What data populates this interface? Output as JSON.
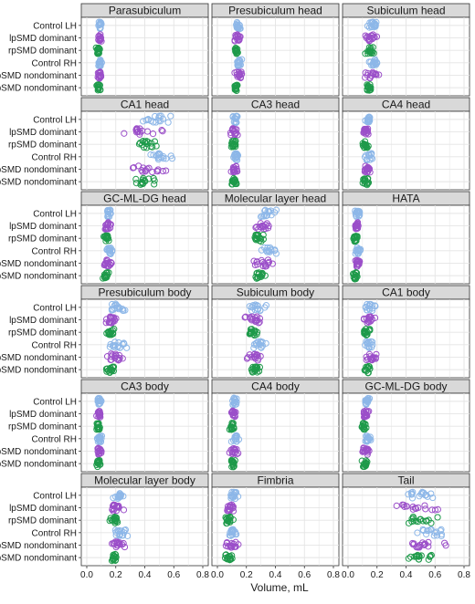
{
  "chart_data": {
    "type": "scatter",
    "layout": "facet-grid",
    "xlabel": "Volume, mL",
    "xlim": [
      0.0,
      0.8
    ],
    "x_ticks": [
      "0.0",
      "0.2",
      "0.4",
      "0.6",
      "0.8"
    ],
    "groups": [
      "Control LH",
      "lpSMD dominant",
      "rpSMD dominant",
      "Control RH",
      "lpSMD nondominant",
      "rpSMD nondominant"
    ],
    "group_colors": [
      "#8db7e8",
      "#9b4fc9",
      "#1e9a4a",
      "#8db7e8",
      "#9b4fc9",
      "#1e9a4a"
    ],
    "panel_bg": "#ffffff",
    "strip_bg": "#d9d9d9",
    "grid_color": "#e4e4e4",
    "marker": "open-circle",
    "panels": [
      {
        "title": "Parasubiculum",
        "ranges": [
          [
            0.07,
            0.11
          ],
          [
            0.07,
            0.11
          ],
          [
            0.06,
            0.1
          ],
          [
            0.07,
            0.11
          ],
          [
            0.07,
            0.11
          ],
          [
            0.06,
            0.1
          ]
        ]
      },
      {
        "title": "Presubiculum head",
        "ranges": [
          [
            0.12,
            0.17
          ],
          [
            0.11,
            0.17
          ],
          [
            0.11,
            0.15
          ],
          [
            0.12,
            0.17
          ],
          [
            0.11,
            0.18
          ],
          [
            0.11,
            0.15
          ]
        ]
      },
      {
        "title": "Subiculum head",
        "ranges": [
          [
            0.13,
            0.22
          ],
          [
            0.11,
            0.21
          ],
          [
            0.11,
            0.19
          ],
          [
            0.12,
            0.24
          ],
          [
            0.1,
            0.22
          ],
          [
            0.12,
            0.17
          ]
        ]
      },
      {
        "title": "CA1 head",
        "ranges": [
          [
            0.32,
            0.65
          ],
          [
            0.23,
            0.58
          ],
          [
            0.31,
            0.5
          ],
          [
            0.33,
            0.65
          ],
          [
            0.22,
            0.61
          ],
          [
            0.28,
            0.53
          ]
        ]
      },
      {
        "title": "CA3 head",
        "ranges": [
          [
            0.1,
            0.15
          ],
          [
            0.08,
            0.15
          ],
          [
            0.08,
            0.14
          ],
          [
            0.1,
            0.16
          ],
          [
            0.08,
            0.15
          ],
          [
            0.09,
            0.14
          ]
        ]
      },
      {
        "title": "CA4 head",
        "ranges": [
          [
            0.11,
            0.17
          ],
          [
            0.09,
            0.16
          ],
          [
            0.09,
            0.15
          ],
          [
            0.11,
            0.18
          ],
          [
            0.09,
            0.17
          ],
          [
            0.09,
            0.15
          ]
        ]
      },
      {
        "title": "GC-ML-DG head",
        "ranges": [
          [
            0.12,
            0.18
          ],
          [
            0.1,
            0.18
          ],
          [
            0.1,
            0.16
          ],
          [
            0.12,
            0.19
          ],
          [
            0.1,
            0.18
          ],
          [
            0.1,
            0.16
          ]
        ]
      },
      {
        "title": "Molecular layer head",
        "ranges": [
          [
            0.25,
            0.42
          ],
          [
            0.2,
            0.4
          ],
          [
            0.23,
            0.35
          ],
          [
            0.27,
            0.43
          ],
          [
            0.2,
            0.42
          ],
          [
            0.24,
            0.35
          ]
        ]
      },
      {
        "title": "HATA",
        "ranges": [
          [
            0.04,
            0.09
          ],
          [
            0.04,
            0.09
          ],
          [
            0.03,
            0.07
          ],
          [
            0.04,
            0.1
          ],
          [
            0.04,
            0.09
          ],
          [
            0.03,
            0.07
          ]
        ]
      },
      {
        "title": "Presubiculum body",
        "ranges": [
          [
            0.12,
            0.3
          ],
          [
            0.11,
            0.23
          ],
          [
            0.12,
            0.21
          ],
          [
            0.12,
            0.32
          ],
          [
            0.1,
            0.3
          ],
          [
            0.12,
            0.22
          ]
        ]
      },
      {
        "title": "Subiculum body",
        "ranges": [
          [
            0.21,
            0.35
          ],
          [
            0.17,
            0.32
          ],
          [
            0.2,
            0.29
          ],
          [
            0.21,
            0.36
          ],
          [
            0.18,
            0.34
          ],
          [
            0.21,
            0.3
          ]
        ]
      },
      {
        "title": "CA1 body",
        "ranges": [
          [
            0.09,
            0.22
          ],
          [
            0.09,
            0.21
          ],
          [
            0.09,
            0.17
          ],
          [
            0.09,
            0.2
          ],
          [
            0.09,
            0.23
          ],
          [
            0.09,
            0.17
          ]
        ]
      },
      {
        "title": "CA3 body",
        "ranges": [
          [
            0.06,
            0.11
          ],
          [
            0.06,
            0.11
          ],
          [
            0.06,
            0.1
          ],
          [
            0.06,
            0.12
          ],
          [
            0.06,
            0.11
          ],
          [
            0.06,
            0.1
          ]
        ]
      },
      {
        "title": "CA4 body",
        "ranges": [
          [
            0.09,
            0.15
          ],
          [
            0.08,
            0.14
          ],
          [
            0.08,
            0.13
          ],
          [
            0.09,
            0.16
          ],
          [
            0.08,
            0.15
          ],
          [
            0.08,
            0.13
          ]
        ]
      },
      {
        "title": "GC-ML-DG body",
        "ranges": [
          [
            0.1,
            0.16
          ],
          [
            0.09,
            0.16
          ],
          [
            0.09,
            0.14
          ],
          [
            0.1,
            0.17
          ],
          [
            0.09,
            0.16
          ],
          [
            0.09,
            0.14
          ]
        ]
      },
      {
        "title": "Molecular layer body",
        "ranges": [
          [
            0.17,
            0.27
          ],
          [
            0.13,
            0.26
          ],
          [
            0.15,
            0.23
          ],
          [
            0.18,
            0.31
          ],
          [
            0.13,
            0.28
          ],
          [
            0.16,
            0.22
          ]
        ]
      },
      {
        "title": "Fimbria",
        "ranges": [
          [
            0.05,
            0.16
          ],
          [
            0.03,
            0.15
          ],
          [
            0.04,
            0.12
          ],
          [
            0.05,
            0.15
          ],
          [
            0.03,
            0.16
          ],
          [
            0.04,
            0.12
          ]
        ]
      },
      {
        "title": "Tail",
        "ranges": [
          [
            0.34,
            0.75
          ],
          [
            0.26,
            0.7
          ],
          [
            0.35,
            0.64
          ],
          [
            0.4,
            0.77
          ],
          [
            0.34,
            0.78
          ],
          [
            0.38,
            0.64
          ]
        ]
      }
    ],
    "points_per_group": 16
  }
}
